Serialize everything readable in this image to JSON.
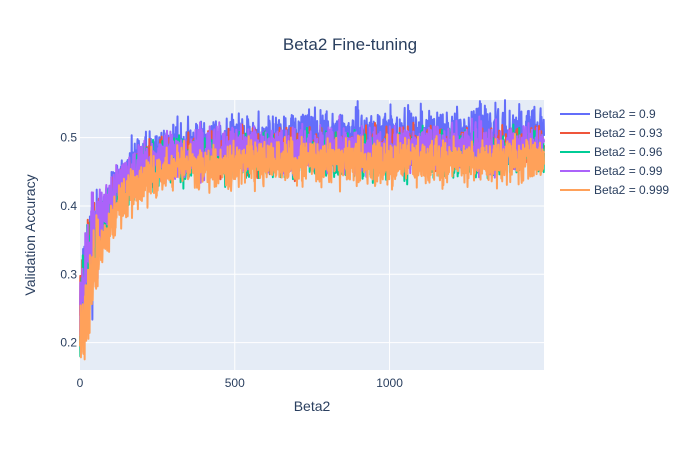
{
  "chart_data": {
    "type": "line",
    "title": "Beta2 Fine-tuning",
    "xlabel": "Beta2",
    "ylabel": "Validation Accuracy",
    "xlim": [
      0,
      1499
    ],
    "ylim": [
      0.16,
      0.555
    ],
    "x_ticks": [
      0,
      500,
      1000
    ],
    "y_ticks": [
      0.2,
      0.3,
      0.4,
      0.5
    ],
    "x_tick_labels": [
      "0",
      "500",
      "1000"
    ],
    "y_tick_labels": [
      "0.2",
      "0.3",
      "0.4",
      "0.5"
    ],
    "grid": true,
    "legend_position": "right",
    "plot_background": "#e5ecf6",
    "n_points": 1500,
    "series": [
      {
        "name": "Beta2 = 0.9",
        "color": "#636efa",
        "start": 0.24,
        "plateau": 0.49,
        "noise": 0.022,
        "seed": 11
      },
      {
        "name": "Beta2 = 0.93",
        "color": "#ef553b",
        "start": 0.26,
        "plateau": 0.475,
        "noise": 0.02,
        "seed": 23
      },
      {
        "name": "Beta2 = 0.96",
        "color": "#00cc96",
        "start": 0.25,
        "plateau": 0.47,
        "noise": 0.02,
        "seed": 37
      },
      {
        "name": "Beta2 = 0.99",
        "color": "#ab63fa",
        "start": 0.28,
        "plateau": 0.48,
        "noise": 0.021,
        "seed": 53
      },
      {
        "name": "Beta2 = 0.999",
        "color": "#ffa15a",
        "start": 0.2,
        "plateau": 0.46,
        "noise": 0.02,
        "seed": 71
      }
    ]
  }
}
